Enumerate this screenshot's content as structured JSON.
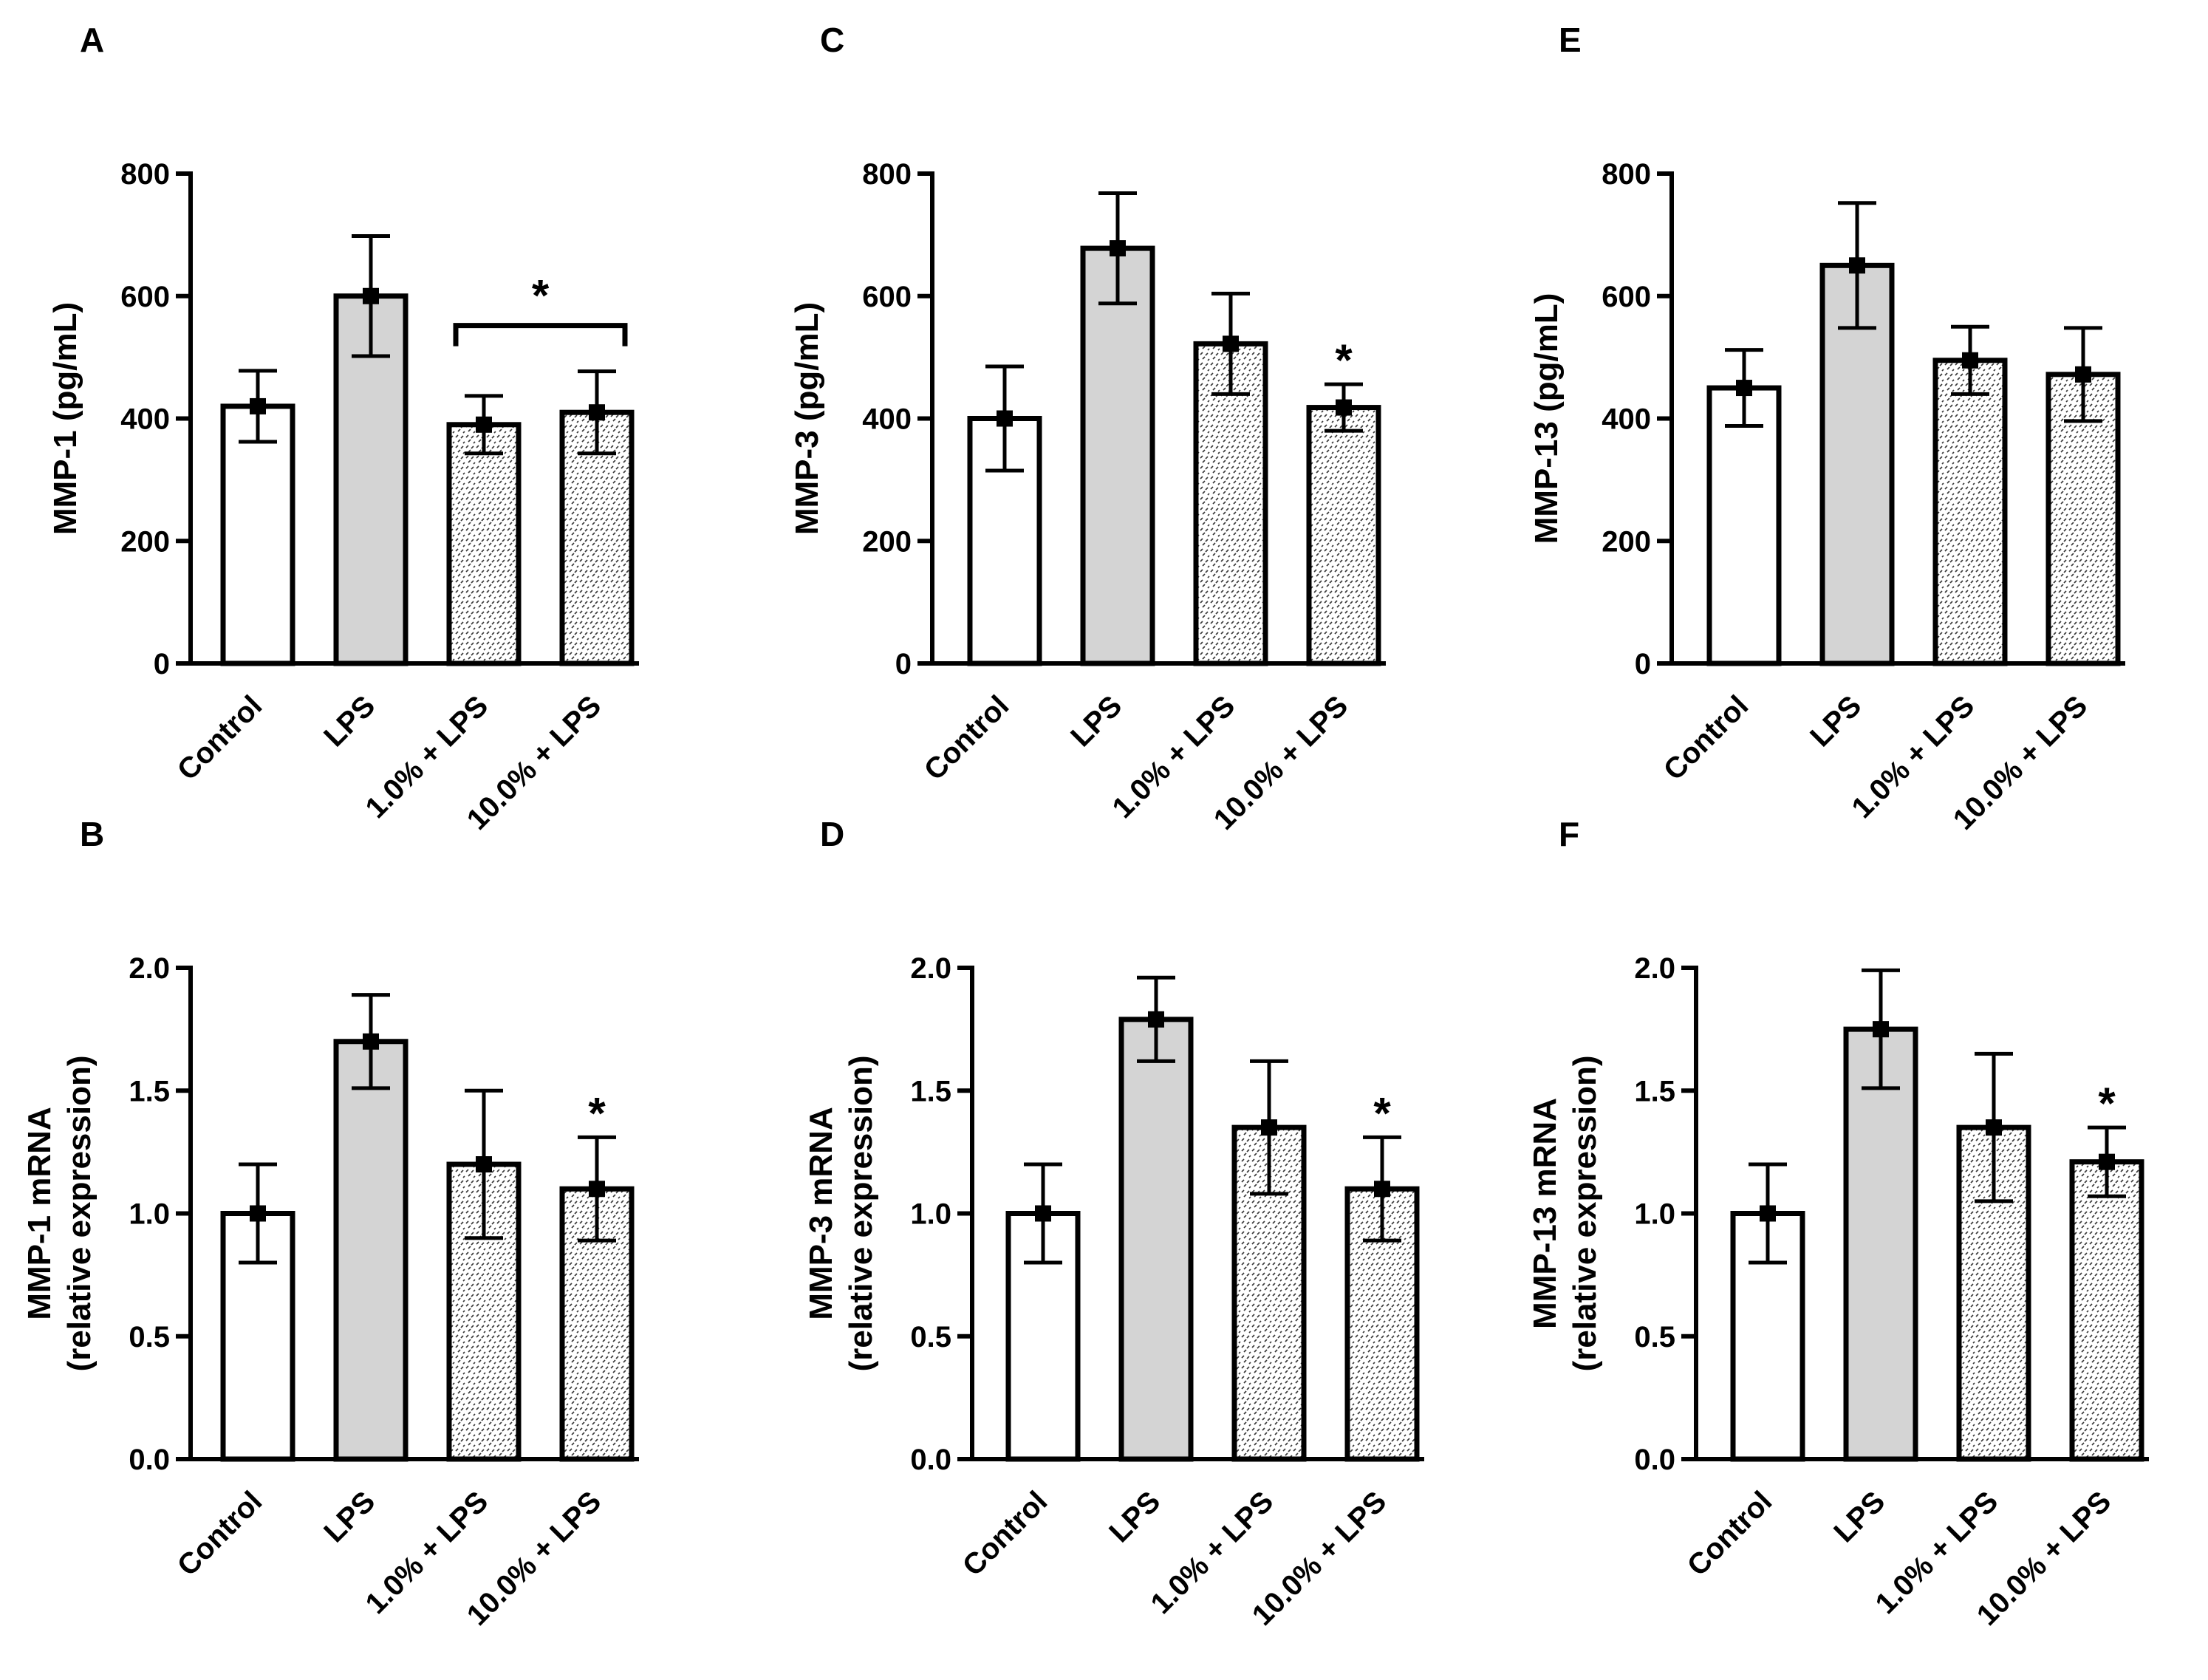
{
  "chart_data": [
    {
      "panel": "A",
      "type": "bar",
      "categories": [
        "Control",
        "LPS",
        "1.0% + LPS",
        "10.0% + LPS"
      ],
      "values": [
        420,
        600,
        390,
        410
      ],
      "errors": [
        58,
        98,
        47,
        67
      ],
      "ylabel_lines": [
        "MMP-1 (pg/mL)"
      ],
      "ylim": [
        0,
        800
      ],
      "yticks": [
        "0",
        "200",
        "400",
        "600",
        "800"
      ],
      "significance": {
        "mark": "*",
        "bracket": [
          2,
          3
        ]
      }
    },
    {
      "panel": "C",
      "type": "bar",
      "categories": [
        "Control",
        "LPS",
        "1.0% + LPS",
        "10.0% + LPS"
      ],
      "values": [
        400,
        678,
        522,
        418
      ],
      "errors": [
        85,
        90,
        82,
        38
      ],
      "ylabel_lines": [
        "MMP-3 (pg/mL)"
      ],
      "ylim": [
        0,
        800
      ],
      "yticks": [
        "0",
        "200",
        "400",
        "600",
        "800"
      ],
      "significance": {
        "mark": "*",
        "bar": 3
      }
    },
    {
      "panel": "E",
      "type": "bar",
      "categories": [
        "Control",
        "LPS",
        "1.0% + LPS",
        "10.0% + LPS"
      ],
      "values": [
        450,
        650,
        495,
        472
      ],
      "errors": [
        62,
        102,
        55,
        76
      ],
      "ylabel_lines": [
        "MMP-13 (pg/mL)"
      ],
      "ylim": [
        0,
        800
      ],
      "yticks": [
        "0",
        "200",
        "400",
        "600",
        "800"
      ],
      "significance": null
    },
    {
      "panel": "B",
      "type": "bar",
      "categories": [
        "Control",
        "LPS",
        "1.0% + LPS",
        "10.0% + LPS"
      ],
      "values": [
        1.0,
        1.7,
        1.2,
        1.1
      ],
      "errors": [
        0.2,
        0.19,
        0.3,
        0.21
      ],
      "ylabel_lines": [
        "MMP-1 mRNA",
        "(relative expression)"
      ],
      "ylim": [
        0,
        2.0
      ],
      "yticks": [
        "0.0",
        "0.5",
        "1.0",
        "1.5",
        "2.0"
      ],
      "significance": {
        "mark": "*",
        "bar": 3
      }
    },
    {
      "panel": "D",
      "type": "bar",
      "categories": [
        "Control",
        "LPS",
        "1.0% + LPS",
        "10.0% + LPS"
      ],
      "values": [
        1.0,
        1.79,
        1.35,
        1.1
      ],
      "errors": [
        0.2,
        0.17,
        0.27,
        0.21
      ],
      "ylabel_lines": [
        "MMP-3 mRNA",
        "(relative expression)"
      ],
      "ylim": [
        0,
        2.0
      ],
      "yticks": [
        "0.0",
        "0.5",
        "1.0",
        "1.5",
        "2.0"
      ],
      "significance": {
        "mark": "*",
        "bar": 3
      }
    },
    {
      "panel": "F",
      "type": "bar",
      "categories": [
        "Control",
        "LPS",
        "1.0% + LPS",
        "10.0% + LPS"
      ],
      "values": [
        1.0,
        1.75,
        1.35,
        1.21
      ],
      "errors": [
        0.2,
        0.24,
        0.3,
        0.14
      ],
      "ylabel_lines": [
        "MMP-13 mRNA",
        "(relative expression)"
      ],
      "ylim": [
        0,
        2.0
      ],
      "yticks": [
        "0.0",
        "0.5",
        "1.0",
        "1.5",
        "2.0"
      ],
      "significance": {
        "mark": "*",
        "bar": 3
      }
    }
  ],
  "colors": {
    "control_fill": "#ffffff",
    "lps_fill": "#d4d4d4",
    "pattern_background": "#ffffff",
    "pattern_ink": "#333333",
    "axis": "#000000"
  }
}
